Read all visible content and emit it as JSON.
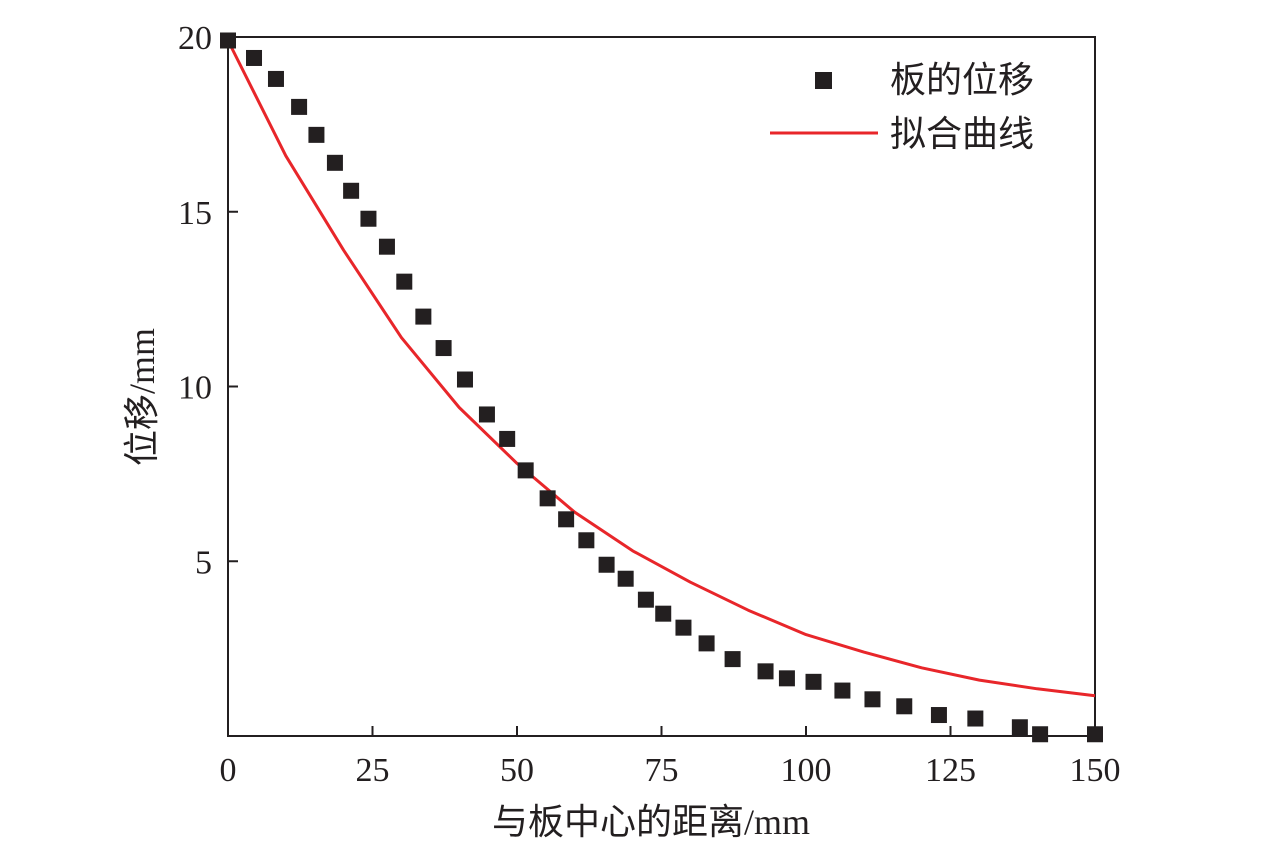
{
  "chart_data": {
    "type": "scatter",
    "xlabel": "与板中心的距离/mm",
    "ylabel": "位移/mm",
    "xlim": [
      0,
      150
    ],
    "ylim": [
      0,
      20
    ],
    "xticks": [
      0,
      25,
      50,
      75,
      100,
      125,
      150
    ],
    "yticks": [
      5,
      10,
      15,
      20
    ],
    "xtick_labels": [
      "0",
      "25",
      "50",
      "75",
      "100",
      "125",
      "150"
    ],
    "ytick_labels": [
      "5",
      "10",
      "15",
      "20"
    ],
    "legend_position": "top-right",
    "grid": false,
    "series": [
      {
        "name": "板的位移",
        "kind": "scatter",
        "marker": "square",
        "color": "#231f20",
        "points": [
          [
            0,
            19.9
          ],
          [
            4.5,
            19.4
          ],
          [
            8.3,
            18.8
          ],
          [
            12.3,
            18.0
          ],
          [
            15.3,
            17.2
          ],
          [
            18.5,
            16.4
          ],
          [
            21.3,
            15.6
          ],
          [
            24.3,
            14.8
          ],
          [
            27.5,
            14.0
          ],
          [
            30.5,
            13.0
          ],
          [
            33.8,
            12.0
          ],
          [
            37.3,
            11.1
          ],
          [
            41.0,
            10.2
          ],
          [
            44.8,
            9.2
          ],
          [
            48.3,
            8.5
          ],
          [
            51.5,
            7.6
          ],
          [
            55.3,
            6.8
          ],
          [
            58.5,
            6.2
          ],
          [
            62.0,
            5.6
          ],
          [
            65.5,
            4.9
          ],
          [
            68.8,
            4.5
          ],
          [
            72.3,
            3.9
          ],
          [
            75.3,
            3.5
          ],
          [
            78.8,
            3.1
          ],
          [
            82.8,
            2.65
          ],
          [
            87.3,
            2.2
          ],
          [
            93.0,
            1.85
          ],
          [
            96.7,
            1.65
          ],
          [
            101.3,
            1.55
          ],
          [
            106.3,
            1.3
          ],
          [
            111.5,
            1.05
          ],
          [
            117.0,
            0.85
          ],
          [
            123.0,
            0.6
          ],
          [
            129.3,
            0.5
          ],
          [
            137.0,
            0.25
          ],
          [
            140.5,
            0.05
          ],
          [
            150.0,
            0.05
          ]
        ]
      },
      {
        "name": "拟合曲线",
        "kind": "line",
        "color": "#e8262a",
        "points": [
          [
            0,
            19.9
          ],
          [
            10,
            16.6
          ],
          [
            20,
            13.9
          ],
          [
            30,
            11.4
          ],
          [
            40,
            9.4
          ],
          [
            50,
            7.8
          ],
          [
            60,
            6.4
          ],
          [
            70,
            5.3
          ],
          [
            80,
            4.4
          ],
          [
            90,
            3.6
          ],
          [
            100,
            2.9
          ],
          [
            110,
            2.4
          ],
          [
            120,
            1.95
          ],
          [
            130,
            1.6
          ],
          [
            140,
            1.35
          ],
          [
            150,
            1.15
          ]
        ]
      }
    ]
  }
}
